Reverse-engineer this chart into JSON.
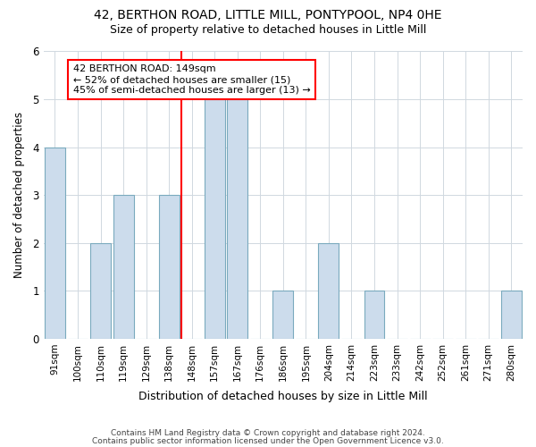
{
  "title_line1": "42, BERTHON ROAD, LITTLE MILL, PONTYPOOL, NP4 0HE",
  "title_line2": "Size of property relative to detached houses in Little Mill",
  "xlabel": "Distribution of detached houses by size in Little Mill",
  "ylabel": "Number of detached properties",
  "categories": [
    "91sqm",
    "100sqm",
    "110sqm",
    "119sqm",
    "129sqm",
    "138sqm",
    "148sqm",
    "157sqm",
    "167sqm",
    "176sqm",
    "186sqm",
    "195sqm",
    "204sqm",
    "214sqm",
    "223sqm",
    "233sqm",
    "242sqm",
    "252sqm",
    "261sqm",
    "271sqm",
    "280sqm"
  ],
  "values": [
    4,
    0,
    2,
    3,
    0,
    3,
    0,
    5,
    5,
    0,
    1,
    0,
    2,
    0,
    1,
    0,
    0,
    0,
    0,
    0,
    1
  ],
  "bar_color": "#ccdcec",
  "bar_edge_color": "#7aaabe",
  "highlight_index": 6,
  "annotation_lines": [
    "42 BERTHON ROAD: 149sqm",
    "← 52% of detached houses are smaller (15)",
    "45% of semi-detached houses are larger (13) →"
  ],
  "ylim": [
    0,
    6
  ],
  "yticks": [
    0,
    1,
    2,
    3,
    4,
    5,
    6
  ],
  "footer_line1": "Contains HM Land Registry data © Crown copyright and database right 2024.",
  "footer_line2": "Contains public sector information licensed under the Open Government Licence v3.0.",
  "background_color": "#ffffff",
  "grid_color": "#d0d8e0"
}
